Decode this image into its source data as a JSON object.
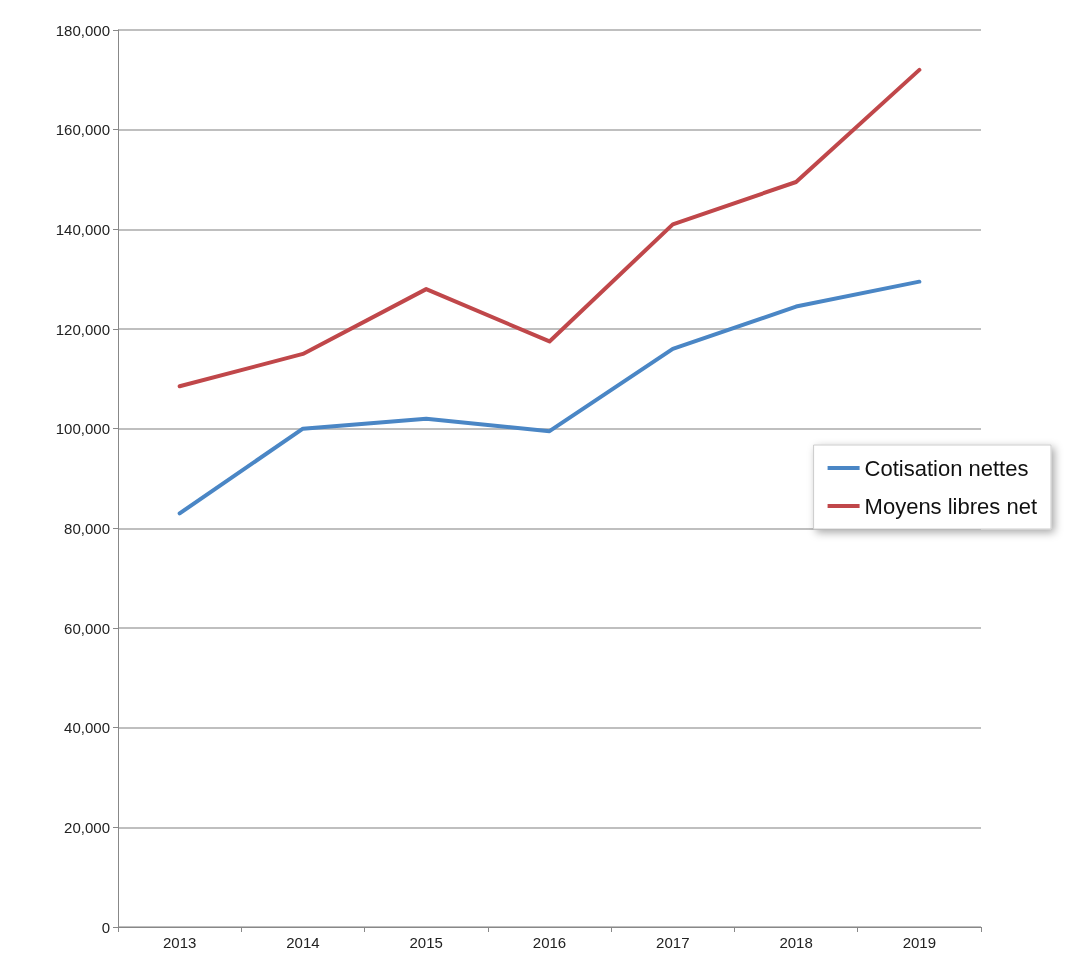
{
  "chart_data": {
    "type": "line",
    "categories": [
      "2013",
      "2014",
      "2015",
      "2016",
      "2017",
      "2018",
      "2019"
    ],
    "series": [
      {
        "name": "Cotisation nettes",
        "color": "#4a86c5",
        "values": [
          83000,
          100000,
          102000,
          99500,
          116000,
          124500,
          129500
        ]
      },
      {
        "name": "Moyens libres net",
        "color": "#c0474a",
        "values": [
          108500,
          115000,
          128000,
          117500,
          141000,
          149500,
          172000
        ]
      }
    ],
    "ylim": [
      0,
      180000
    ],
    "yticks": [
      {
        "value": 0,
        "label": "0"
      },
      {
        "value": 20000,
        "label": "20,000"
      },
      {
        "value": 40000,
        "label": "40,000"
      },
      {
        "value": 60000,
        "label": "60,000"
      },
      {
        "value": 80000,
        "label": "80,000"
      },
      {
        "value": 100000,
        "label": "100,000"
      },
      {
        "value": 120000,
        "label": "120,000"
      },
      {
        "value": 140000,
        "label": "140,000"
      },
      {
        "value": 160000,
        "label": "160,000"
      },
      {
        "value": 180000,
        "label": "180,000"
      }
    ],
    "grid": "y",
    "legend": "right",
    "marker": "none",
    "line_style": "solid"
  }
}
